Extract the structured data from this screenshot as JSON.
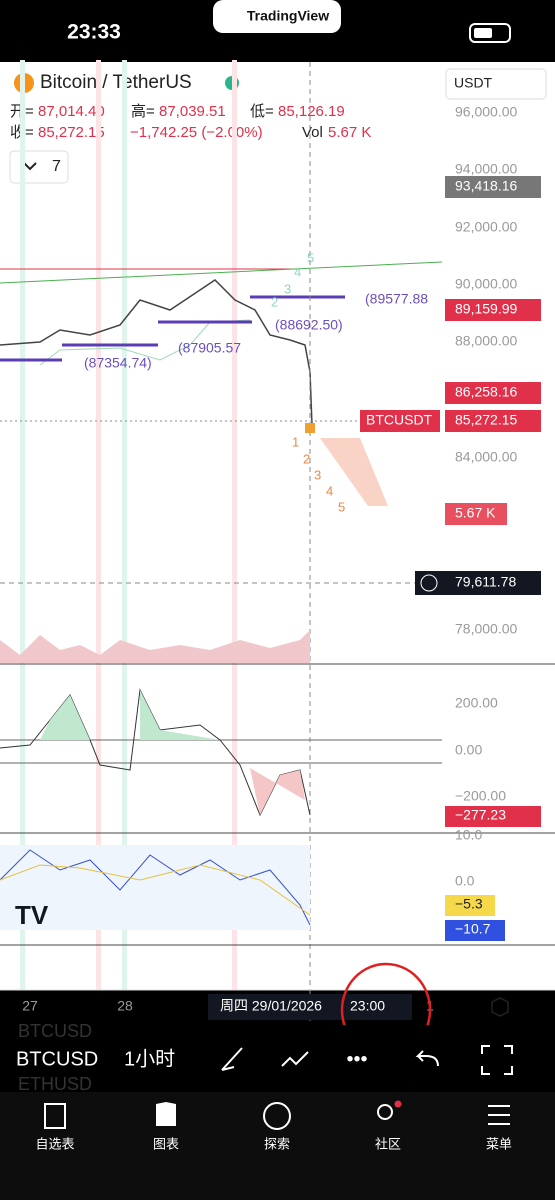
{
  "status_bar": {
    "time": "23:33",
    "app": "TradingView"
  },
  "symbol": {
    "name": "Bitcoin / TetherUS",
    "interval_count": "7",
    "ohlc": [
      {
        "label": "开=",
        "value": "87,014.40"
      },
      {
        "label": "高=",
        "value": "87,039.51"
      },
      {
        "label": "低=",
        "value": "85,126.19"
      },
      {
        "label": "收=",
        "value": "85,272.15"
      }
    ],
    "change": "−1,742.25 (−2.00%)",
    "volume_label": "Vol",
    "volume": "5.67 K"
  },
  "price_axis": {
    "currency": "USDT",
    "labels": [
      "96,000.00",
      "94,000.00",
      "92,000.00",
      "90,000.00",
      "88,000.00",
      "84,000.00",
      "78,000.00"
    ],
    "badges": {
      "high_line": "93,418.16",
      "upper": "89,159.99",
      "lower": "86,258.16",
      "symbol": "BTCUSDT",
      "last": "85,272.15",
      "volume": "5.67 K",
      "cursor": "79,611.78"
    }
  },
  "annotations": {
    "levels": [
      "(89577.88",
      "(88692.50)",
      "(87905.57",
      "(87354.74)"
    ],
    "wave_down": [
      "1",
      "2",
      "3",
      "4",
      "5"
    ],
    "wave_up": [
      "2",
      "3",
      "4",
      "5"
    ]
  },
  "oscillator": {
    "labels": [
      "200.00",
      "0.00",
      "−200.00"
    ],
    "value": "−277.23"
  },
  "rsi": {
    "labels": [
      "10.0",
      "0.0"
    ],
    "value_a": "−5.3",
    "value_b": "−10.7"
  },
  "time_axis": {
    "labels": [
      "27",
      "28",
      "1"
    ],
    "cursor_date": "周四 29/01/2026",
    "cursor_time": "23:00"
  },
  "toolbar": {
    "symbol": "BTCUSD",
    "interval": "1小时",
    "ghost": [
      "BTCUSD",
      "ETHUSD"
    ]
  },
  "nav": [
    "自选表",
    "图表",
    "探索",
    "社区",
    "菜单"
  ]
}
